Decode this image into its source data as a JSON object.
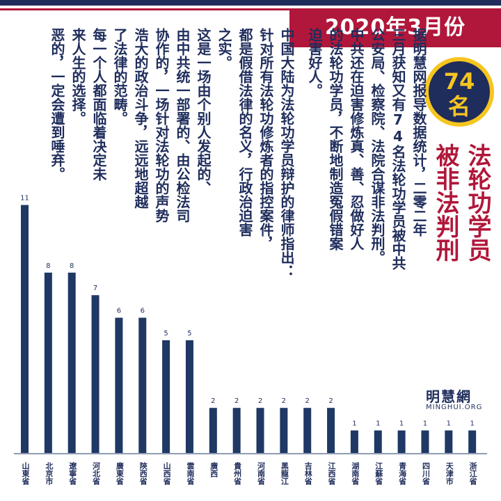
{
  "header": {
    "date": "2020年3月份",
    "count_number": "74",
    "count_unit": "名",
    "headline": [
      "法轮功学员",
      "被非法判刑"
    ]
  },
  "text_columns": [
    "据明慧网报导数据统计，二零二年",
    "三月获知又有74名法轮功学员被中共",
    "公安局、检察院、法院合谋非法判刑。",
    "中共还在迫害修炼真、善、忍做好人",
    "的法轮功学员，不断地制造冤假错案",
    "迫害好人。",
    "中国大陆为法轮功学员辩护的律师指出：",
    "针对所有法轮功修炼者的指控案件，",
    "都是假借法律的名义，行政治迫害",
    "之实。",
    "这是一场由个别人发起的、",
    "由中共统一部署的、由公检法司",
    "协作的，一场针对法轮功的声势",
    "浩大的政治斗争，远远地超越",
    "了法律的范畴。",
    "每一个人都面临着决定未",
    "来人生的选择。",
    "恶的，一定会遭到唾弃。"
  ],
  "logo": {
    "zh": "明慧網",
    "en": "MINGHUI.ORG"
  },
  "colors": {
    "navy": "#1f3864",
    "red": "#b1173a",
    "gold": "#f7c520"
  },
  "chart_data": {
    "type": "bar",
    "categories": [
      "山東省",
      "北京市",
      "遼寧省",
      "河北省",
      "廣東省",
      "陝西省",
      "山西省",
      "雲南省",
      "廣西",
      "貴州省",
      "河南省",
      "黑龍江",
      "吉林省",
      "江西省",
      "湖南省",
      "江蘇省",
      "青海省",
      "四川省",
      "天津市",
      "浙江省"
    ],
    "values": [
      11,
      8,
      8,
      7,
      6,
      6,
      5,
      5,
      2,
      2,
      2,
      2,
      2,
      2,
      1,
      1,
      1,
      1,
      1,
      1
    ],
    "ylim": [
      0,
      12
    ]
  }
}
